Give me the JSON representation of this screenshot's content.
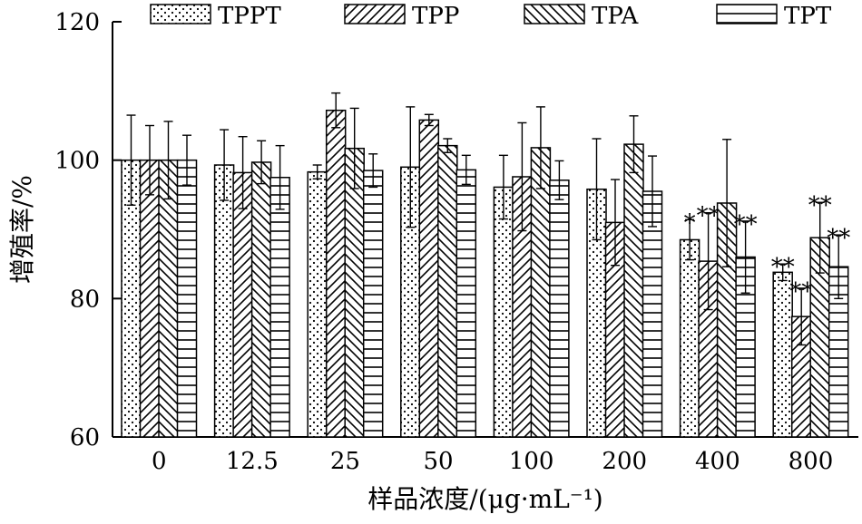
{
  "chart_data": {
    "type": "bar",
    "title": "",
    "xlabel": "样品浓度/(μg·mL⁻¹)",
    "ylabel": "增殖率/%",
    "ylim": [
      60,
      120
    ],
    "yticks": [
      60,
      80,
      100,
      120
    ],
    "categories": [
      "0",
      "12.5",
      "25",
      "50",
      "100",
      "200",
      "400",
      "800"
    ],
    "legend_position": "top",
    "series": [
      {
        "name": "TPPT",
        "pattern": "dots",
        "values": [
          100.0,
          99.3,
          98.3,
          99.0,
          96.1,
          95.8,
          88.5,
          83.8
        ],
        "errors": [
          6.5,
          5.1,
          1.0,
          8.7,
          4.6,
          7.3,
          2.9,
          1.2
        ],
        "significance": [
          "",
          "",
          "",
          "",
          "",
          "",
          "*",
          "**"
        ]
      },
      {
        "name": "TPP",
        "pattern": "diag-up",
        "values": [
          100.0,
          98.2,
          107.2,
          105.8,
          97.6,
          91.0,
          85.4,
          77.4
        ],
        "errors": [
          5.0,
          5.2,
          2.5,
          0.8,
          7.8,
          6.2,
          7.0,
          4.1
        ],
        "significance": [
          "",
          "",
          "",
          "",
          "",
          "",
          "**",
          "**"
        ]
      },
      {
        "name": "TPA",
        "pattern": "diag-down",
        "values": [
          100.0,
          99.7,
          101.7,
          102.1,
          101.8,
          102.3,
          93.8,
          88.8
        ],
        "errors": [
          5.6,
          3.1,
          5.8,
          1.0,
          5.9,
          4.1,
          9.2,
          5.1
        ],
        "significance": [
          "",
          "",
          "",
          "",
          "",
          "",
          "",
          "**"
        ]
      },
      {
        "name": "TPT",
        "pattern": "horizontal",
        "values": [
          100.0,
          97.5,
          98.5,
          98.6,
          97.1,
          95.5,
          86.0,
          84.6
        ],
        "errors": [
          3.6,
          4.6,
          2.4,
          2.1,
          2.8,
          5.1,
          5.2,
          4.6
        ],
        "significance": [
          "",
          "",
          "",
          "",
          "",
          "",
          "**",
          "**"
        ]
      }
    ]
  }
}
